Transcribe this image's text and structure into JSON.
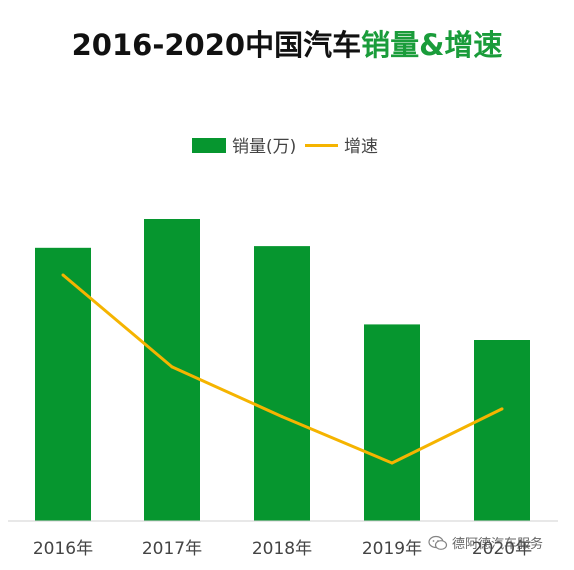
{
  "title": {
    "main": "2016-2020中国汽车",
    "accent": "销量&增速"
  },
  "colors": {
    "bar": "#06962f",
    "line": "#f5b400",
    "axis": "#d0d0d0",
    "title_accent": "#1a9c3a"
  },
  "watermark": {
    "text": "德阿德汽车服务",
    "icon": "wechat-icon"
  },
  "chart_data": {
    "type": "bar",
    "categories": [
      "2016年",
      "2017年",
      "2018年",
      "2019年",
      "2020年"
    ],
    "series": [
      {
        "name": "销量(万)",
        "type": "bar",
        "values": [
          2803,
          2888,
          2808,
          2577,
          2531
        ]
      },
      {
        "name": "增速",
        "type": "line",
        "values": [
          13.7,
          3.0,
          -2.8,
          -8.2,
          -1.9
        ]
      }
    ],
    "legend": "top-center",
    "grid": false
  }
}
